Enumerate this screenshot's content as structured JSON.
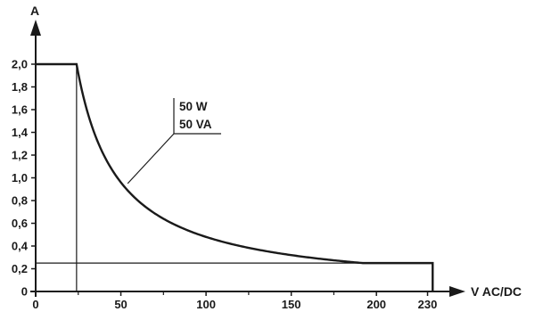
{
  "chart_data": {
    "type": "line",
    "title": "",
    "xlabel": "V AC/DC",
    "ylabel": "A",
    "xlim": [
      0,
      240
    ],
    "ylim": [
      0,
      2.0
    ],
    "x_ticks": [
      0,
      50,
      100,
      150,
      200,
      230
    ],
    "x_tick_labels": [
      "0",
      "50",
      "100",
      "150",
      "200",
      "230"
    ],
    "y_ticks": [
      0,
      0.2,
      0.4,
      0.6,
      0.8,
      1.0,
      1.2,
      1.4,
      1.6,
      1.8,
      2.0
    ],
    "y_tick_labels": [
      "0",
      "0,2",
      "0,4",
      "0,6",
      "0,8",
      "1,0",
      "1,2",
      "1,4",
      "1,6",
      "1,8",
      "2,0"
    ],
    "grid": false,
    "series": [
      {
        "x": [
          0,
          24,
          24,
          30,
          40,
          50,
          60,
          80,
          100,
          125,
          150,
          175,
          200,
          220,
          233,
          233
        ],
        "y": [
          2.0,
          2.0,
          1.78,
          1.5,
          1.2,
          1.0,
          0.83,
          0.62,
          0.5,
          0.4,
          0.33,
          0.29,
          0.255,
          0.25,
          0.25,
          0.0
        ]
      }
    ],
    "reference_lines": [
      {
        "orientation": "horizontal",
        "y": 0.25,
        "x_from": 0,
        "x_to": 233
      },
      {
        "orientation": "vertical",
        "x": 24,
        "y_from": 0,
        "y_to": 2.0
      }
    ],
    "annotations": [
      {
        "lines": [
          "50 W",
          "50 VA"
        ],
        "points_to": {
          "x": 54,
          "y": 0.95
        }
      }
    ]
  },
  "colors": {
    "curve": "#1a1a1a",
    "axis": "#1a1a1a",
    "text": "#1a1a1a"
  }
}
